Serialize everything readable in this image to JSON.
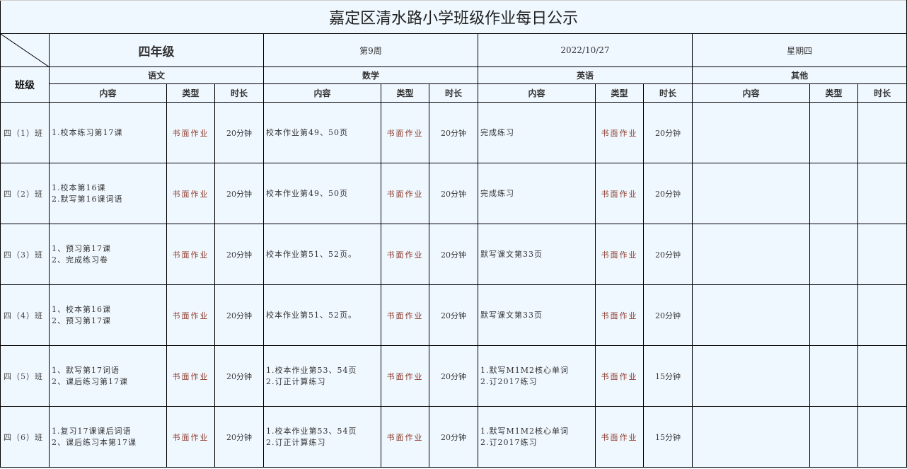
{
  "title": "嘉定区清水路小学班级作业每日公示",
  "grade": "四年级",
  "week": "第9周",
  "date": "2022/10/27",
  "weekday": "星期四",
  "class_header": "班级",
  "subjects": [
    "语文",
    "数学",
    "英语",
    "其他"
  ],
  "subheaders": {
    "content": "内容",
    "type": "类型",
    "duration": "时长"
  },
  "rows": [
    {
      "class": "四（1）班",
      "chinese": [
        "1.校本练习第17课",
        "书面作业",
        "20分钟"
      ],
      "math": [
        "校本作业第49、50页",
        "书面作业",
        "20分钟"
      ],
      "english": [
        "完成练习",
        "书面作业",
        "20分钟"
      ]
    },
    {
      "class": "四（2）班",
      "chinese": [
        "1.校本第16课\n2.默写第16课词语",
        "书面作业",
        "20分钟"
      ],
      "math": [
        "校本作业第49、50页",
        "书面作业",
        "20分钟"
      ],
      "english": [
        "完成练习",
        "书面作业",
        "20分钟"
      ]
    },
    {
      "class": "四（3）班",
      "chinese": [
        "1、预习第17课\n2、完成练习卷",
        "书面作业",
        "20分钟"
      ],
      "math": [
        "校本作业第51、52页。",
        "书面作业",
        "20分钟"
      ],
      "english": [
        "默写课文第33页",
        "书面作业",
        "20分钟"
      ]
    },
    {
      "class": "四（4）班",
      "chinese": [
        "1、校本第16课\n2、预习第17课",
        "书面作业",
        "20分钟"
      ],
      "math": [
        "校本作业第51、52页。",
        "书面作业",
        "20分钟"
      ],
      "english": [
        "默写课文第33页",
        "书面作业",
        "20分钟"
      ]
    },
    {
      "class": "四（5）班",
      "chinese": [
        "1、默写第17词语\n2、课后练习第17课",
        "书面作业",
        "20分钟"
      ],
      "math": [
        "1.校本作业第53、54页\n2.订正计算练习",
        "书面作业",
        "20分钟"
      ],
      "english": [
        "1.默写M1M2核心单词\n2.订2017练习",
        "书面作业",
        "15分钟"
      ]
    },
    {
      "class": "四（6）班",
      "chinese": [
        "1.复习17课课后词语\n2、课后练习本第17课",
        "书面作业",
        "20分钟"
      ],
      "math": [
        "1.校本作业第53、54页\n2.订正计算练习",
        "书面作业",
        "20分钟"
      ],
      "english": [
        "1.默写M1M2核心单词\n2.订2017练习",
        "书面作业",
        "15分钟"
      ]
    }
  ]
}
